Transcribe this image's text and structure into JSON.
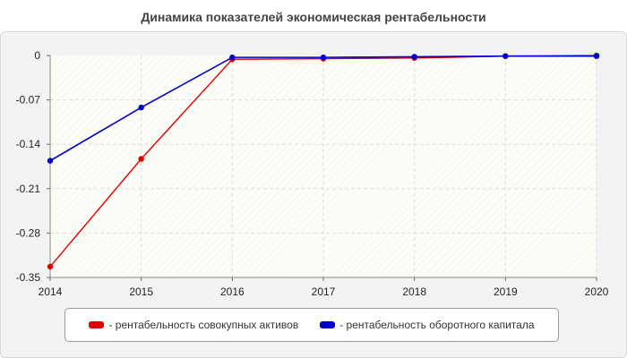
{
  "chart_data": {
    "type": "line",
    "title": "Динамика показателей экономическая рентабельности",
    "xlabel": "",
    "ylabel": "",
    "x": [
      "2014",
      "2015",
      "2016",
      "2017",
      "2018",
      "2019",
      "2020"
    ],
    "ylim": [
      -0.35,
      0
    ],
    "yticks": [
      "0",
      "-0.07",
      "-0.14",
      "-0.21",
      "-0.28",
      "-0.35"
    ],
    "ytick_values": [
      0,
      -0.07,
      -0.14,
      -0.21,
      -0.28,
      -0.35
    ],
    "grid": true,
    "legend_position": "bottom",
    "series": [
      {
        "name": "- рентабельность совокупных активов",
        "color": "#e00000",
        "values": [
          -0.333,
          -0.163,
          -0.006,
          -0.005,
          -0.004,
          -0.001,
          0
        ]
      },
      {
        "name": "- рентабельность оборотного капитала",
        "color": "#0000cc",
        "values": [
          -0.166,
          -0.082,
          -0.003,
          -0.003,
          -0.002,
          -0.001,
          -0.001
        ]
      }
    ]
  }
}
